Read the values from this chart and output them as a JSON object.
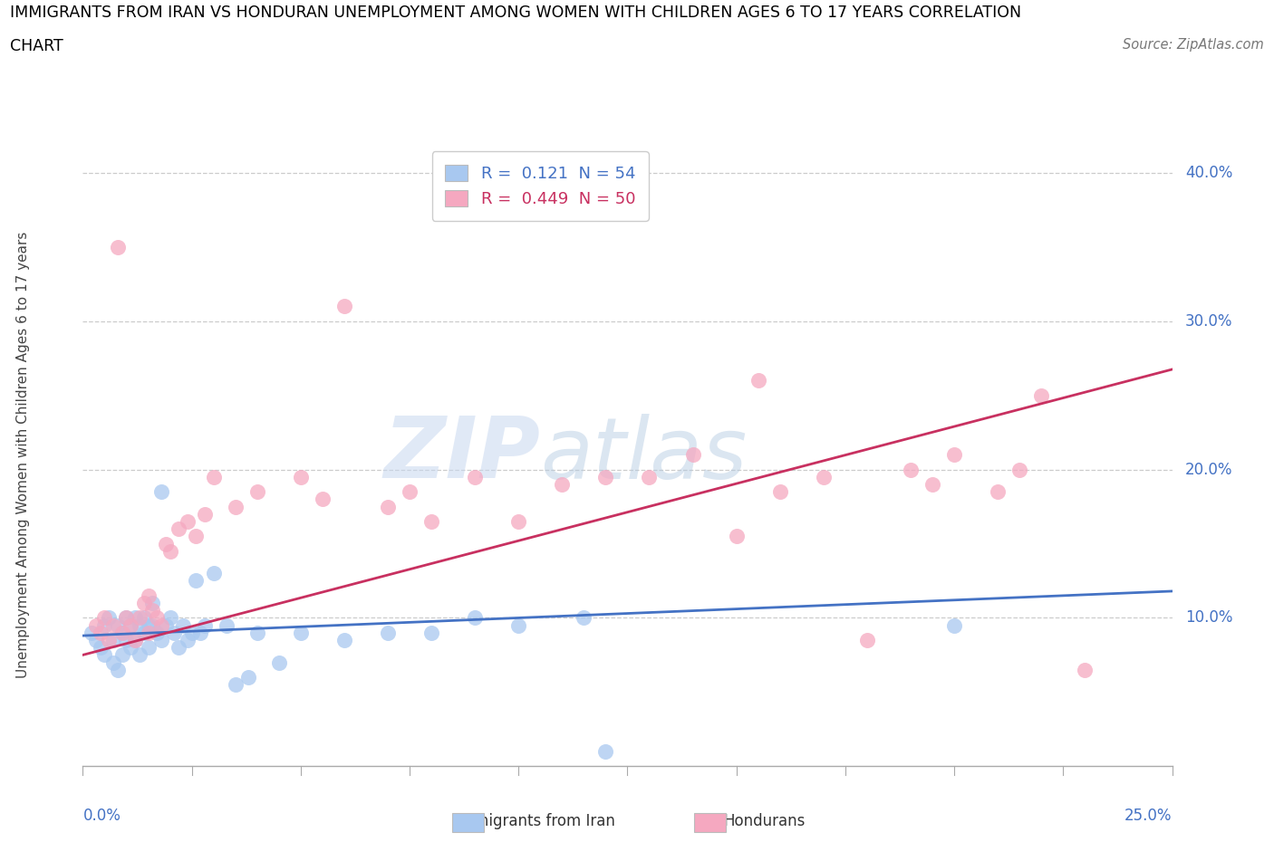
{
  "title_line1": "IMMIGRANTS FROM IRAN VS HONDURAN UNEMPLOYMENT AMONG WOMEN WITH CHILDREN AGES 6 TO 17 YEARS CORRELATION",
  "title_line2": "CHART",
  "source": "Source: ZipAtlas.com",
  "ylabel": "Unemployment Among Women with Children Ages 6 to 17 years",
  "xlim": [
    0.0,
    0.25
  ],
  "ylim": [
    0.0,
    0.42
  ],
  "ytick_labels": [
    "10.0%",
    "20.0%",
    "30.0%",
    "40.0%"
  ],
  "ytick_values": [
    0.1,
    0.2,
    0.3,
    0.4
  ],
  "legend_r1": "R =  0.121  N = 54",
  "legend_r2": "R =  0.449  N = 50",
  "color_blue": "#A8C8F0",
  "color_pink": "#F5A8C0",
  "line_color_blue": "#4472C4",
  "line_color_pink": "#C83060",
  "right_label_color": "#4472C4",
  "iran_x": [
    0.002,
    0.003,
    0.004,
    0.005,
    0.005,
    0.006,
    0.007,
    0.007,
    0.008,
    0.008,
    0.009,
    0.009,
    0.01,
    0.01,
    0.011,
    0.011,
    0.012,
    0.012,
    0.013,
    0.013,
    0.014,
    0.014,
    0.015,
    0.015,
    0.016,
    0.016,
    0.017,
    0.018,
    0.018,
    0.019,
    0.02,
    0.021,
    0.022,
    0.023,
    0.024,
    0.025,
    0.026,
    0.027,
    0.028,
    0.03,
    0.033,
    0.035,
    0.038,
    0.04,
    0.045,
    0.05,
    0.06,
    0.07,
    0.08,
    0.09,
    0.1,
    0.115,
    0.12,
    0.2
  ],
  "iran_y": [
    0.09,
    0.085,
    0.08,
    0.095,
    0.075,
    0.1,
    0.07,
    0.085,
    0.095,
    0.065,
    0.09,
    0.075,
    0.085,
    0.1,
    0.095,
    0.08,
    0.1,
    0.085,
    0.095,
    0.075,
    0.1,
    0.09,
    0.095,
    0.08,
    0.11,
    0.095,
    0.09,
    0.185,
    0.085,
    0.095,
    0.1,
    0.09,
    0.08,
    0.095,
    0.085,
    0.09,
    0.125,
    0.09,
    0.095,
    0.13,
    0.095,
    0.055,
    0.06,
    0.09,
    0.07,
    0.09,
    0.085,
    0.09,
    0.09,
    0.1,
    0.095,
    0.1,
    0.01,
    0.095
  ],
  "honduran_x": [
    0.003,
    0.004,
    0.005,
    0.006,
    0.007,
    0.008,
    0.009,
    0.01,
    0.011,
    0.012,
    0.013,
    0.014,
    0.015,
    0.015,
    0.016,
    0.017,
    0.018,
    0.019,
    0.02,
    0.022,
    0.024,
    0.026,
    0.028,
    0.03,
    0.035,
    0.04,
    0.05,
    0.055,
    0.06,
    0.07,
    0.075,
    0.08,
    0.09,
    0.1,
    0.11,
    0.12,
    0.13,
    0.14,
    0.15,
    0.155,
    0.16,
    0.17,
    0.18,
    0.19,
    0.195,
    0.2,
    0.21,
    0.215,
    0.22,
    0.23
  ],
  "honduran_y": [
    0.095,
    0.09,
    0.1,
    0.085,
    0.095,
    0.35,
    0.09,
    0.1,
    0.095,
    0.085,
    0.1,
    0.11,
    0.115,
    0.09,
    0.105,
    0.1,
    0.095,
    0.15,
    0.145,
    0.16,
    0.165,
    0.155,
    0.17,
    0.195,
    0.175,
    0.185,
    0.195,
    0.18,
    0.31,
    0.175,
    0.185,
    0.165,
    0.195,
    0.165,
    0.19,
    0.195,
    0.195,
    0.21,
    0.155,
    0.26,
    0.185,
    0.195,
    0.085,
    0.2,
    0.19,
    0.21,
    0.185,
    0.2,
    0.25,
    0.065
  ]
}
